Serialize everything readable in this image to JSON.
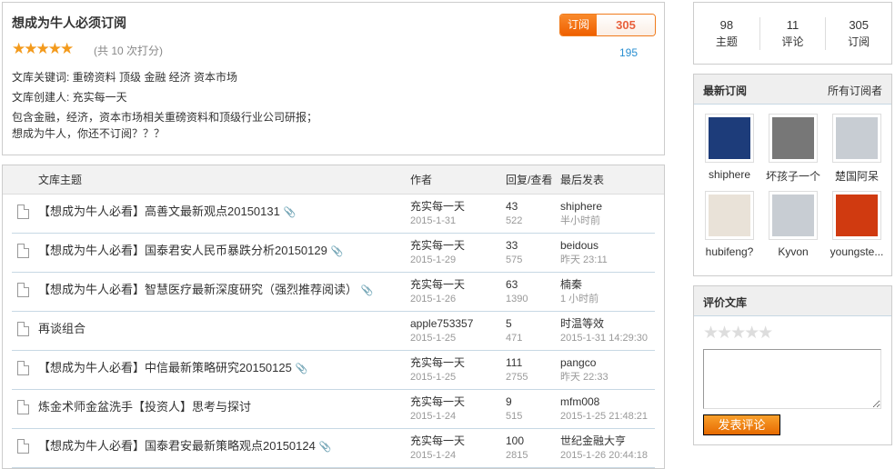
{
  "info": {
    "title": "想成为牛人必须订阅",
    "stars": "★★★★★",
    "rating": 5,
    "score_text": "(共 10 次打分)",
    "keywords": "文库关键词: 重磅资料  顶级  金融  经济  资本市场",
    "creator": "文库创建人: 充实每一天",
    "desc1": "包含金融，经济，资本市场相关重磅资料和顶级行业公司研报；",
    "desc2": "想成为牛人，你还不订阅？？？",
    "subscribe_label": "订阅",
    "subscribe_count": "305",
    "sub_number": "195"
  },
  "list": {
    "headers": {
      "topic": "文库主题",
      "author": "作者",
      "stats": "回复/查看",
      "last": "最后发表"
    },
    "rows": [
      {
        "title": "【想成为牛人必看】高善文最新观点20150131",
        "author": "充实每一天",
        "date": "2015-1-31",
        "replies": "43",
        "views": "522",
        "last_user": "shiphere",
        "last_time": "半小时前",
        "clip": "📎"
      },
      {
        "title": "【想成为牛人必看】国泰君安人民币暴跌分析20150129",
        "author": "充实每一天",
        "date": "2015-1-29",
        "replies": "33",
        "views": "575",
        "last_user": "beidous",
        "last_time": "昨天 23:11",
        "clip": "📎"
      },
      {
        "title": "【想成为牛人必看】智慧医疗最新深度研究（强烈推荐阅读）",
        "author": "充实每一天",
        "date": "2015-1-26",
        "replies": "63",
        "views": "1390",
        "last_user": "楠秦",
        "last_time": "1 小时前",
        "clip": "📎"
      },
      {
        "title": "再谈组合",
        "author": "apple753357",
        "date": "2015-1-25",
        "replies": "5",
        "views": "471",
        "last_user": "时温等效",
        "last_time": "2015-1-31 14:29:30",
        "clip": ""
      },
      {
        "title": "【想成为牛人必看】中信最新策略研究20150125",
        "author": "充实每一天",
        "date": "2015-1-25",
        "replies": "111",
        "views": "2755",
        "last_user": "pangco",
        "last_time": "昨天 22:33",
        "clip": "📎"
      },
      {
        "title": "炼金术师金盆洗手【投资人】思考与探讨",
        "author": "充实每一天",
        "date": "2015-1-24",
        "replies": "9",
        "views": "515",
        "last_user": "mfm008",
        "last_time": "2015-1-25 21:48:21",
        "clip": ""
      },
      {
        "title": "【想成为牛人必看】国泰君安最新策略观点20150124",
        "author": "充实每一天",
        "date": "2015-1-24",
        "replies": "100",
        "views": "2815",
        "last_user": "世纪金融大亨",
        "last_time": "2015-1-26 20:44:18",
        "clip": "📎"
      }
    ]
  },
  "stats": [
    {
      "value": "98",
      "label": "主题"
    },
    {
      "value": "11",
      "label": "评论"
    },
    {
      "value": "305",
      "label": "订阅"
    }
  ],
  "subscribers": {
    "title": "最新订阅",
    "more": "所有订阅者",
    "users": [
      {
        "name": "shiphere",
        "color": "#1d3c7a"
      },
      {
        "name": "坏孩子一个",
        "color": "#777"
      },
      {
        "name": "楚国阿呆",
        "color": "#c8cdd3"
      },
      {
        "name": "hubifeng?",
        "color": "#e9e2d8"
      },
      {
        "name": "Kyvon",
        "color": "#c8cdd3"
      },
      {
        "name": "youngste...",
        "color": "#d03a10"
      }
    ]
  },
  "rate": {
    "title": "评价文库",
    "stars": "★★★★★",
    "comment_value": "",
    "post_label": "发表评论"
  }
}
